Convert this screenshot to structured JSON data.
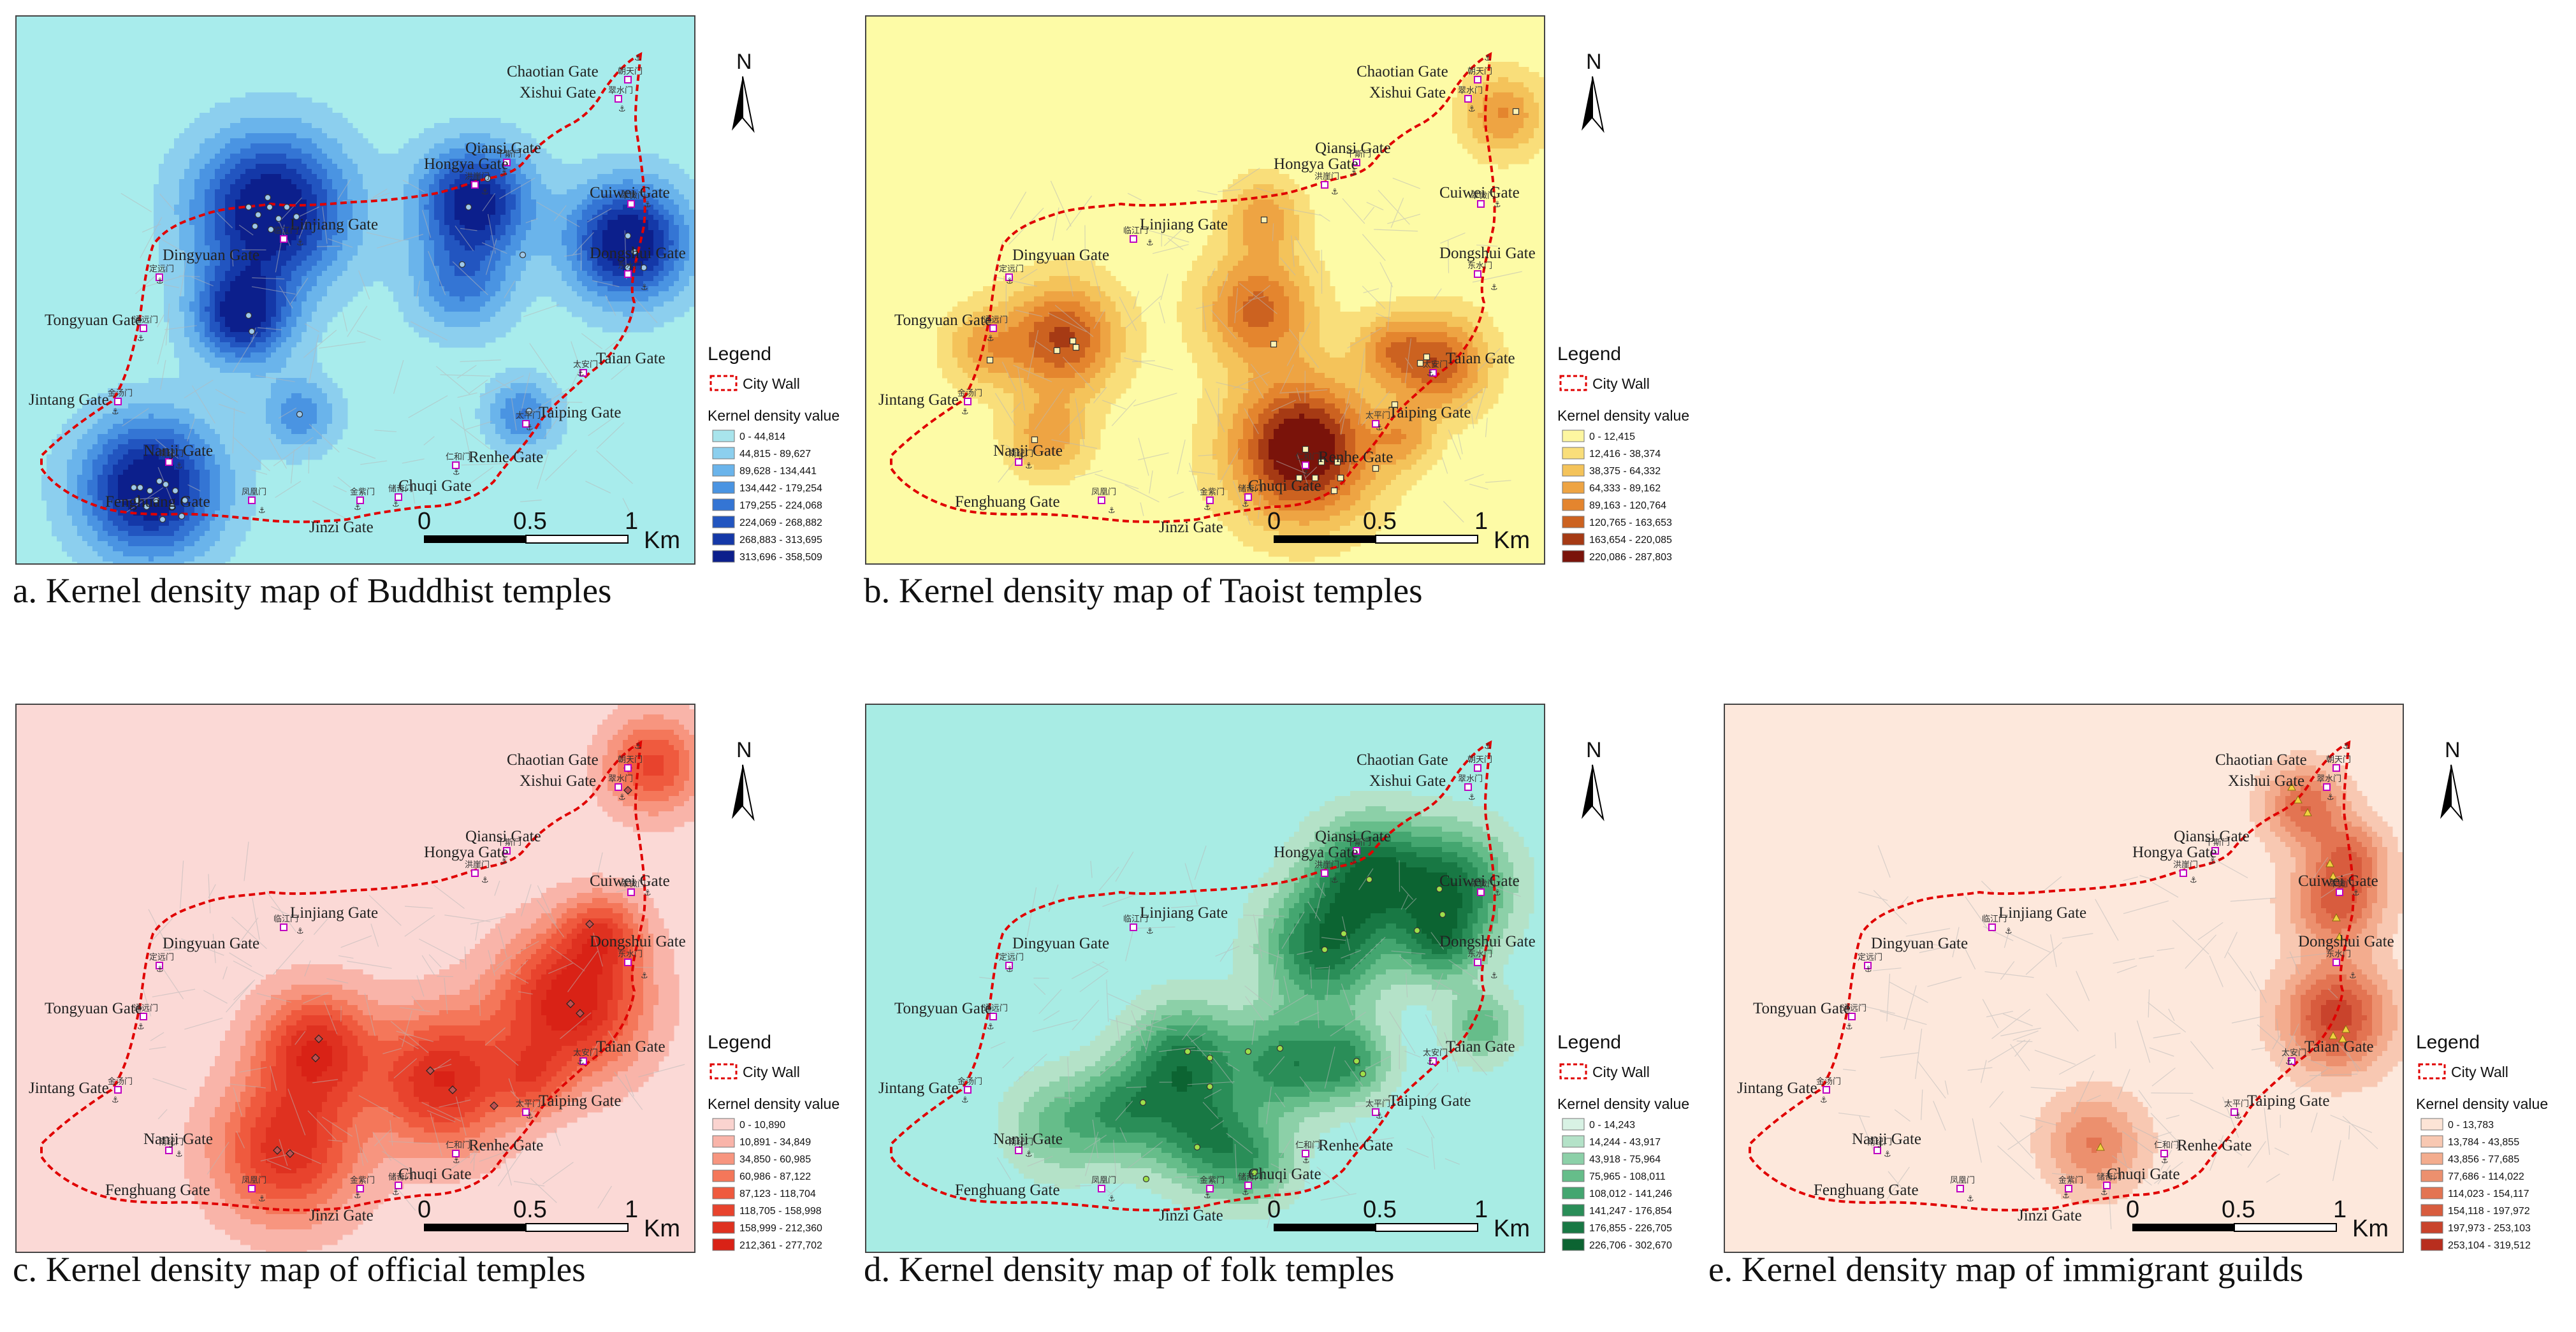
{
  "scale_bar": {
    "zero": "0",
    "half": "0.5",
    "one": "1",
    "unit": "Km"
  },
  "north_label": "N",
  "legend_labels": {
    "title": "Legend",
    "city_wall": "City Wall",
    "kernel": "Kernel density value"
  },
  "gates": [
    {
      "name": "Chaotian Gate",
      "cn": "朝天门"
    },
    {
      "name": "Xishui Gate",
      "cn": "翠水门"
    },
    {
      "name": "Qiansi Gate",
      "cn": "千斯门"
    },
    {
      "name": "Hongya Gate",
      "cn": "洪崖门"
    },
    {
      "name": "Cuiwei Gate",
      "cn": "翠微门"
    },
    {
      "name": "Linjiang Gate",
      "cn": "临江门"
    },
    {
      "name": "Dingyuan Gate",
      "cn": "定远门"
    },
    {
      "name": "Dongshui Gate",
      "cn": "东水门"
    },
    {
      "name": "Tongyuan Gate",
      "cn": "通远门"
    },
    {
      "name": "Taian Gate",
      "cn": "太安门"
    },
    {
      "name": "Jintang Gate",
      "cn": "金汤门"
    },
    {
      "name": "Taiping Gate",
      "cn": "太平门"
    },
    {
      "name": "Nanji Gate",
      "cn": "南纪门"
    },
    {
      "name": "Renhe Gate",
      "cn": "仁和门"
    },
    {
      "name": "Chuqi Gate",
      "cn": "储奇门"
    },
    {
      "name": "Fenghuang Gate",
      "cn": "凤凰门"
    },
    {
      "name": "Jinzi Gate",
      "cn": "金紫门"
    }
  ],
  "panels": [
    {
      "caption": "a. Kernel density map of Buddhist temples",
      "background": "#a8ecec",
      "marker": "circle",
      "marker_color": "#9ec8ea",
      "ramp": [
        "#a8e4ec",
        "#8ccfee",
        "#6ab4eb",
        "#4a94e2",
        "#3475d4",
        "#2255c0",
        "#1438a8",
        "#0c1f8c"
      ],
      "ranges": [
        "0 - 44,814",
        "44,815 - 89,627",
        "89,628 - 134,441",
        "134,442 - 179,254",
        "179,255 - 224,068",
        "224,069 - 268,882",
        "268,883 - 313,695",
        "313,696 - 358,509"
      ]
    },
    {
      "caption": "b. Kernel density map of Taoist temples",
      "background": "#fdfba6",
      "marker": "square",
      "marker_color": "#fdf2b4",
      "ramp": [
        "#fdf6a0",
        "#f9de7a",
        "#f4c35a",
        "#eea443",
        "#e4852e",
        "#cc6220",
        "#a63a14",
        "#7a130a"
      ],
      "ranges": [
        "0 - 12,415",
        "12,416 - 38,374",
        "38,375 - 64,332",
        "64,333 - 89,162",
        "89,163 - 120,764",
        "120,765 - 163,653",
        "163,654 - 220,085",
        "220,086 - 287,803"
      ]
    },
    {
      "caption": "c. Kernel density map of official temples",
      "background": "#fbd9d6",
      "marker": "diamond",
      "marker_color": "#c05050",
      "ramp": [
        "#fad3cf",
        "#f9b4a9",
        "#f7957f",
        "#f4775a",
        "#ef5a3e",
        "#e8432d",
        "#df3120",
        "#d92216"
      ],
      "ranges": [
        "0 - 10,890",
        "10,891 - 34,849",
        "34,850 - 60,985",
        "60,986 - 87,122",
        "87,123 - 118,704",
        "118,705 - 158,998",
        "158,999 - 212,360",
        "212,361 - 277,702"
      ]
    },
    {
      "caption": "d. Kernel density map of folk temples",
      "background": "#a8ece4",
      "marker": "circle",
      "marker_color": "#9ee04a",
      "ramp": [
        "#d8f2e4",
        "#b4e2c8",
        "#8cd0a8",
        "#66bd8a",
        "#44a670",
        "#2a8e58",
        "#187844",
        "#0c6432"
      ],
      "ranges": [
        "0 - 14,243",
        "14,244 - 43,917",
        "43,918 - 75,964",
        "75,965 - 108,011",
        "108,012 - 141,246",
        "141,247 - 176,854",
        "176,855 - 226,705",
        "226,706 - 302,670"
      ]
    },
    {
      "caption": "e. Kernel density map of immigrant guilds",
      "background": "#fde8dc",
      "marker": "triangle",
      "marker_color": "#f0d040",
      "ramp": [
        "#fce4d6",
        "#f8c8b2",
        "#f3ac8e",
        "#ec906e",
        "#e37452",
        "#d85c3e",
        "#c9432c",
        "#b82e1e"
      ],
      "ranges": [
        "0 - 13,783",
        "13,784 - 43,855",
        "43,856 - 77,685",
        "77,686 - 114,022",
        "114,023 - 154,117",
        "154,118 - 197,972",
        "197,973 - 253,103",
        "253,104 - 319,512"
      ]
    }
  ]
}
